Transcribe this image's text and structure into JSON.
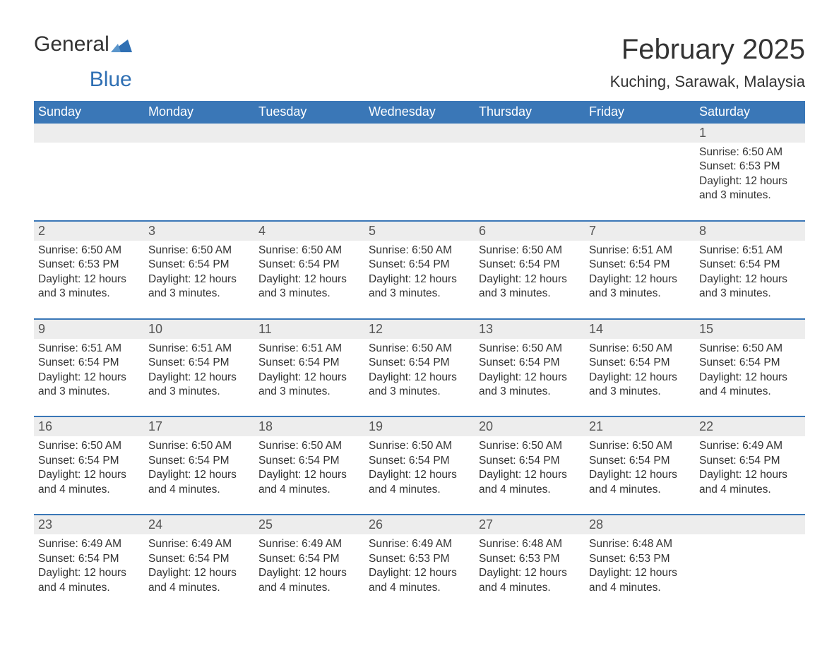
{
  "logo": {
    "text1": "General",
    "text2": "Blue"
  },
  "title": "February 2025",
  "location": "Kuching, Sarawak, Malaysia",
  "colors": {
    "header_bg": "#3a77b7",
    "header_text": "#ffffff",
    "daynum_bg": "#ededed",
    "week_border": "#3a77b7",
    "text": "#333333",
    "logo_blue": "#2f6fb3"
  },
  "day_headers": [
    "Sunday",
    "Monday",
    "Tuesday",
    "Wednesday",
    "Thursday",
    "Friday",
    "Saturday"
  ],
  "weeks": [
    [
      {
        "n": "",
        "sr": "",
        "ss": "",
        "dl1": "",
        "dl2": ""
      },
      {
        "n": "",
        "sr": "",
        "ss": "",
        "dl1": "",
        "dl2": ""
      },
      {
        "n": "",
        "sr": "",
        "ss": "",
        "dl1": "",
        "dl2": ""
      },
      {
        "n": "",
        "sr": "",
        "ss": "",
        "dl1": "",
        "dl2": ""
      },
      {
        "n": "",
        "sr": "",
        "ss": "",
        "dl1": "",
        "dl2": ""
      },
      {
        "n": "",
        "sr": "",
        "ss": "",
        "dl1": "",
        "dl2": ""
      },
      {
        "n": "1",
        "sr": "Sunrise: 6:50 AM",
        "ss": "Sunset: 6:53 PM",
        "dl1": "Daylight: 12 hours",
        "dl2": "and 3 minutes."
      }
    ],
    [
      {
        "n": "2",
        "sr": "Sunrise: 6:50 AM",
        "ss": "Sunset: 6:53 PM",
        "dl1": "Daylight: 12 hours",
        "dl2": "and 3 minutes."
      },
      {
        "n": "3",
        "sr": "Sunrise: 6:50 AM",
        "ss": "Sunset: 6:54 PM",
        "dl1": "Daylight: 12 hours",
        "dl2": "and 3 minutes."
      },
      {
        "n": "4",
        "sr": "Sunrise: 6:50 AM",
        "ss": "Sunset: 6:54 PM",
        "dl1": "Daylight: 12 hours",
        "dl2": "and 3 minutes."
      },
      {
        "n": "5",
        "sr": "Sunrise: 6:50 AM",
        "ss": "Sunset: 6:54 PM",
        "dl1": "Daylight: 12 hours",
        "dl2": "and 3 minutes."
      },
      {
        "n": "6",
        "sr": "Sunrise: 6:50 AM",
        "ss": "Sunset: 6:54 PM",
        "dl1": "Daylight: 12 hours",
        "dl2": "and 3 minutes."
      },
      {
        "n": "7",
        "sr": "Sunrise: 6:51 AM",
        "ss": "Sunset: 6:54 PM",
        "dl1": "Daylight: 12 hours",
        "dl2": "and 3 minutes."
      },
      {
        "n": "8",
        "sr": "Sunrise: 6:51 AM",
        "ss": "Sunset: 6:54 PM",
        "dl1": "Daylight: 12 hours",
        "dl2": "and 3 minutes."
      }
    ],
    [
      {
        "n": "9",
        "sr": "Sunrise: 6:51 AM",
        "ss": "Sunset: 6:54 PM",
        "dl1": "Daylight: 12 hours",
        "dl2": "and 3 minutes."
      },
      {
        "n": "10",
        "sr": "Sunrise: 6:51 AM",
        "ss": "Sunset: 6:54 PM",
        "dl1": "Daylight: 12 hours",
        "dl2": "and 3 minutes."
      },
      {
        "n": "11",
        "sr": "Sunrise: 6:51 AM",
        "ss": "Sunset: 6:54 PM",
        "dl1": "Daylight: 12 hours",
        "dl2": "and 3 minutes."
      },
      {
        "n": "12",
        "sr": "Sunrise: 6:50 AM",
        "ss": "Sunset: 6:54 PM",
        "dl1": "Daylight: 12 hours",
        "dl2": "and 3 minutes."
      },
      {
        "n": "13",
        "sr": "Sunrise: 6:50 AM",
        "ss": "Sunset: 6:54 PM",
        "dl1": "Daylight: 12 hours",
        "dl2": "and 3 minutes."
      },
      {
        "n": "14",
        "sr": "Sunrise: 6:50 AM",
        "ss": "Sunset: 6:54 PM",
        "dl1": "Daylight: 12 hours",
        "dl2": "and 3 minutes."
      },
      {
        "n": "15",
        "sr": "Sunrise: 6:50 AM",
        "ss": "Sunset: 6:54 PM",
        "dl1": "Daylight: 12 hours",
        "dl2": "and 4 minutes."
      }
    ],
    [
      {
        "n": "16",
        "sr": "Sunrise: 6:50 AM",
        "ss": "Sunset: 6:54 PM",
        "dl1": "Daylight: 12 hours",
        "dl2": "and 4 minutes."
      },
      {
        "n": "17",
        "sr": "Sunrise: 6:50 AM",
        "ss": "Sunset: 6:54 PM",
        "dl1": "Daylight: 12 hours",
        "dl2": "and 4 minutes."
      },
      {
        "n": "18",
        "sr": "Sunrise: 6:50 AM",
        "ss": "Sunset: 6:54 PM",
        "dl1": "Daylight: 12 hours",
        "dl2": "and 4 minutes."
      },
      {
        "n": "19",
        "sr": "Sunrise: 6:50 AM",
        "ss": "Sunset: 6:54 PM",
        "dl1": "Daylight: 12 hours",
        "dl2": "and 4 minutes."
      },
      {
        "n": "20",
        "sr": "Sunrise: 6:50 AM",
        "ss": "Sunset: 6:54 PM",
        "dl1": "Daylight: 12 hours",
        "dl2": "and 4 minutes."
      },
      {
        "n": "21",
        "sr": "Sunrise: 6:50 AM",
        "ss": "Sunset: 6:54 PM",
        "dl1": "Daylight: 12 hours",
        "dl2": "and 4 minutes."
      },
      {
        "n": "22",
        "sr": "Sunrise: 6:49 AM",
        "ss": "Sunset: 6:54 PM",
        "dl1": "Daylight: 12 hours",
        "dl2": "and 4 minutes."
      }
    ],
    [
      {
        "n": "23",
        "sr": "Sunrise: 6:49 AM",
        "ss": "Sunset: 6:54 PM",
        "dl1": "Daylight: 12 hours",
        "dl2": "and 4 minutes."
      },
      {
        "n": "24",
        "sr": "Sunrise: 6:49 AM",
        "ss": "Sunset: 6:54 PM",
        "dl1": "Daylight: 12 hours",
        "dl2": "and 4 minutes."
      },
      {
        "n": "25",
        "sr": "Sunrise: 6:49 AM",
        "ss": "Sunset: 6:54 PM",
        "dl1": "Daylight: 12 hours",
        "dl2": "and 4 minutes."
      },
      {
        "n": "26",
        "sr": "Sunrise: 6:49 AM",
        "ss": "Sunset: 6:53 PM",
        "dl1": "Daylight: 12 hours",
        "dl2": "and 4 minutes."
      },
      {
        "n": "27",
        "sr": "Sunrise: 6:48 AM",
        "ss": "Sunset: 6:53 PM",
        "dl1": "Daylight: 12 hours",
        "dl2": "and 4 minutes."
      },
      {
        "n": "28",
        "sr": "Sunrise: 6:48 AM",
        "ss": "Sunset: 6:53 PM",
        "dl1": "Daylight: 12 hours",
        "dl2": "and 4 minutes."
      },
      {
        "n": "",
        "sr": "",
        "ss": "",
        "dl1": "",
        "dl2": ""
      }
    ]
  ]
}
